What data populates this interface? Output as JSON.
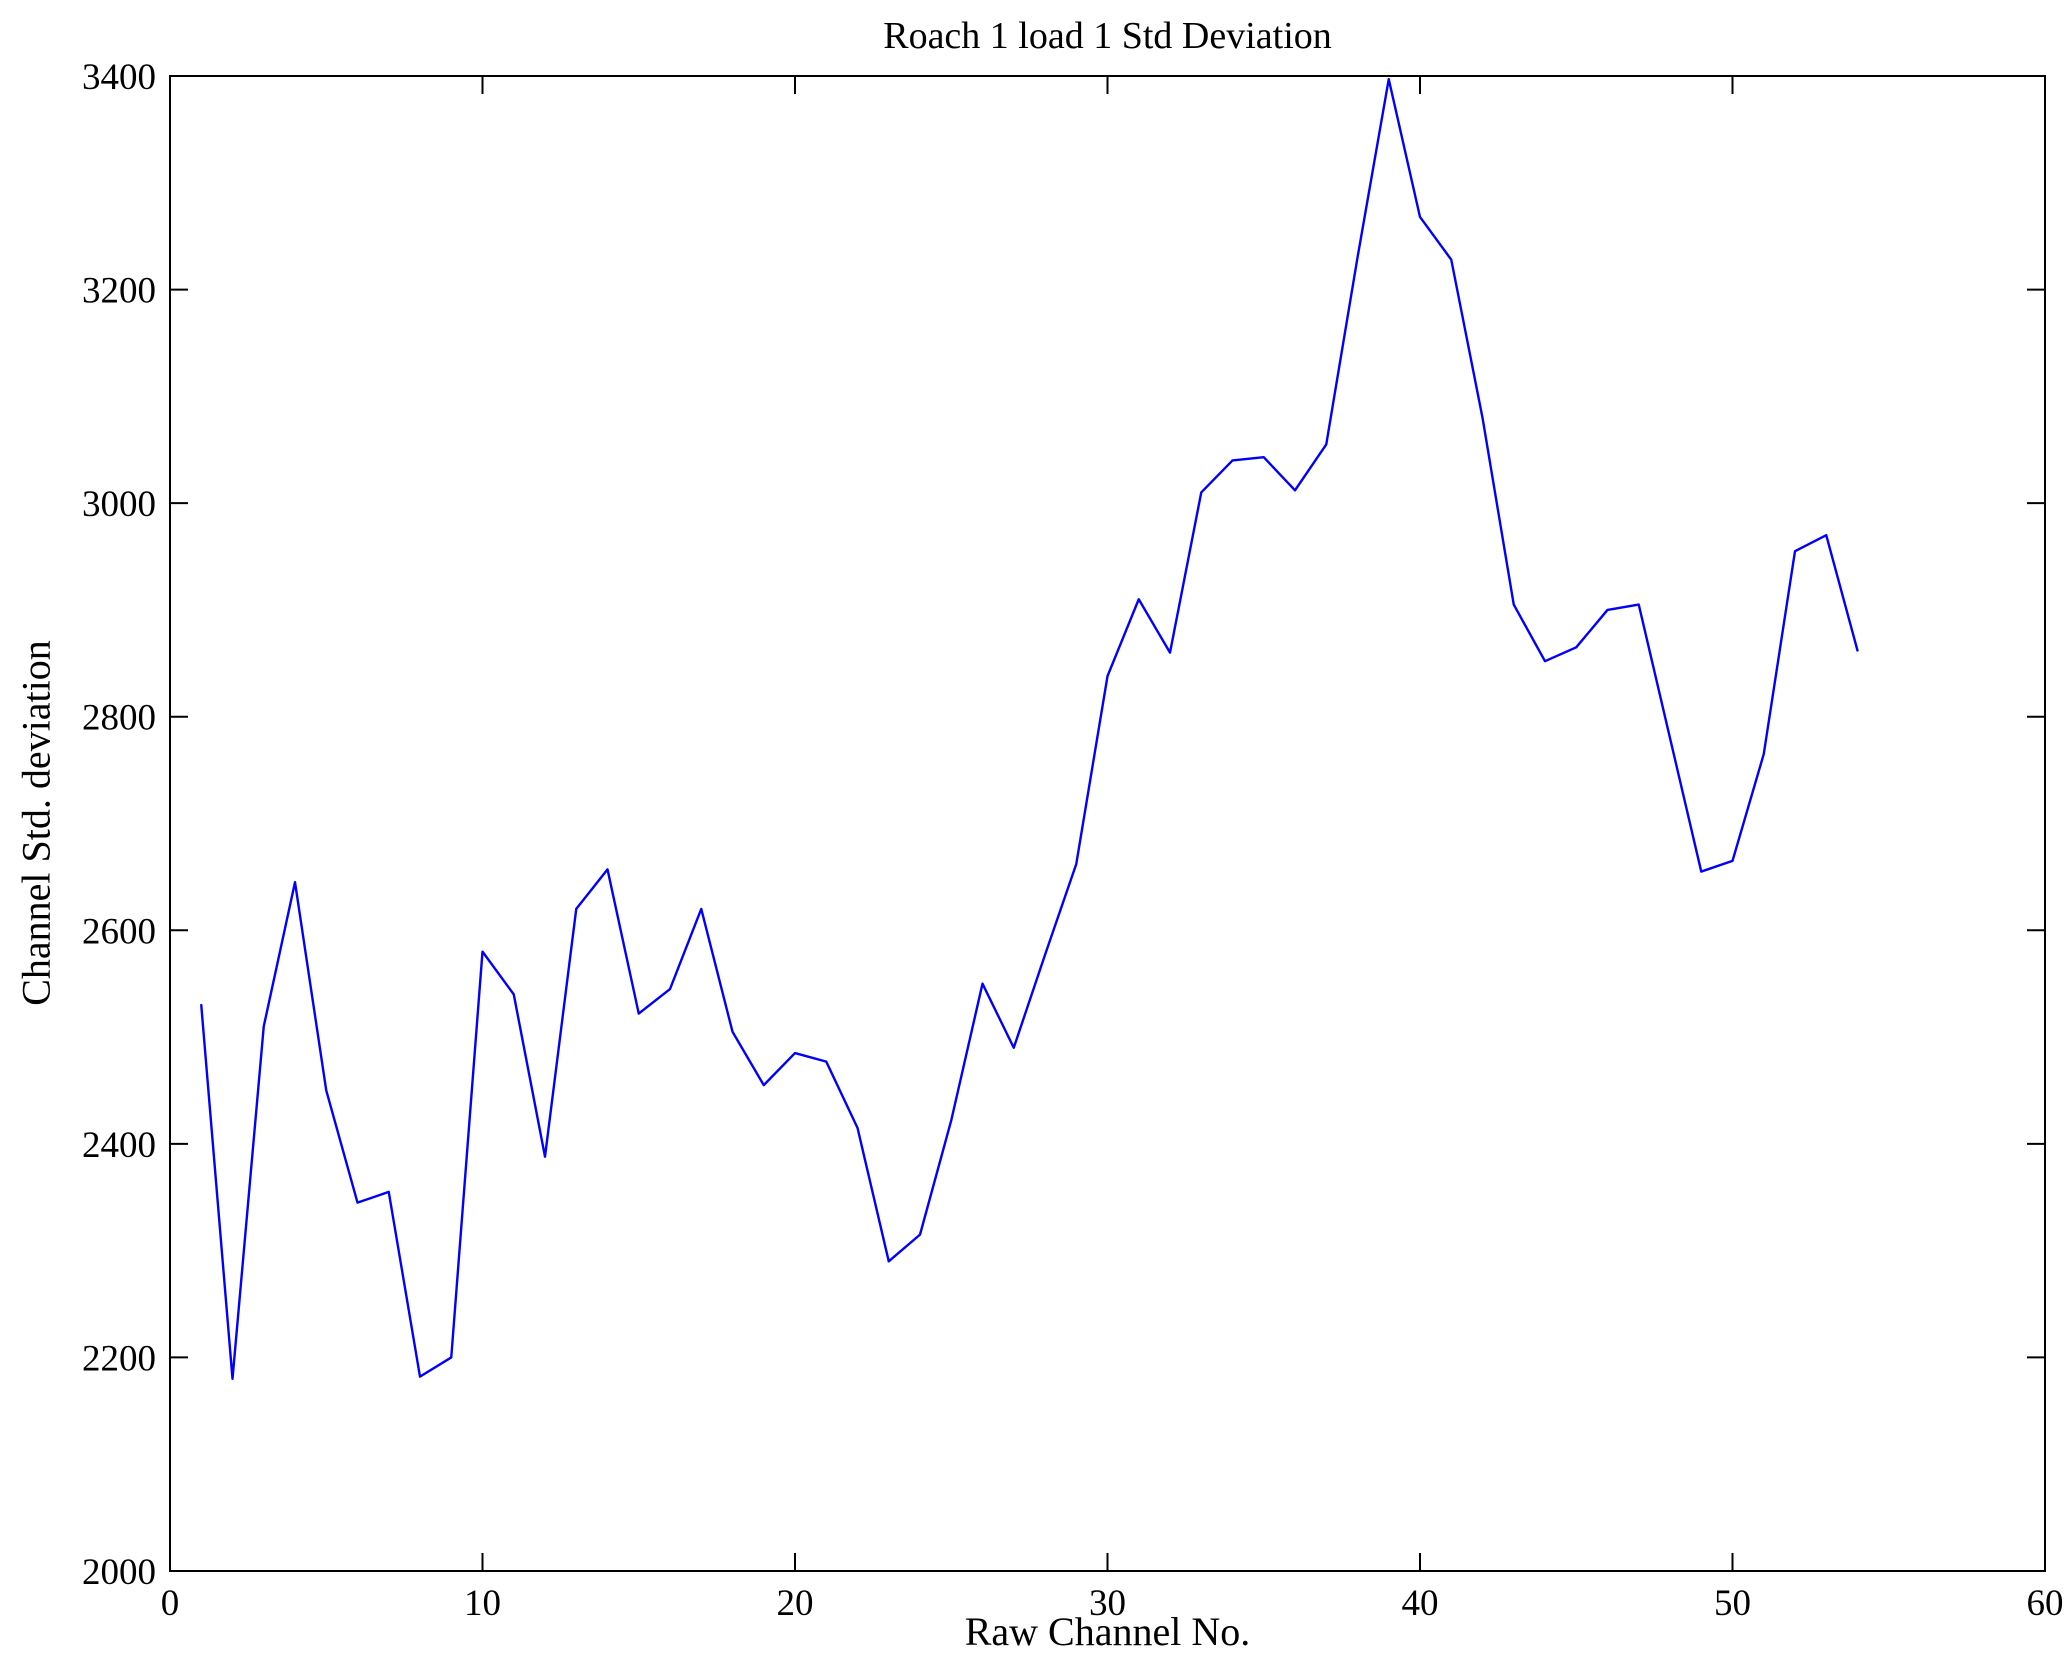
{
  "chart_data": {
    "type": "line",
    "title": "Roach 1 load 1 Std Deviation",
    "xlabel": "Raw Channel No.",
    "ylabel": "Channel Std. deviation",
    "xlim": [
      0,
      60
    ],
    "ylim": [
      2000,
      3400
    ],
    "xticks": [
      0,
      10,
      20,
      30,
      40,
      50,
      60
    ],
    "yticks": [
      2000,
      2200,
      2400,
      2600,
      2800,
      3000,
      3200,
      3400
    ],
    "grid": false,
    "legend_position": "none",
    "line_color": "#0000FF",
    "axis_color": "#000000",
    "x": [
      1,
      2,
      3,
      4,
      5,
      6,
      7,
      8,
      9,
      10,
      11,
      12,
      13,
      14,
      15,
      16,
      17,
      18,
      19,
      20,
      21,
      22,
      23,
      24,
      25,
      26,
      27,
      28,
      29,
      30,
      31,
      32,
      33,
      34,
      35,
      36,
      37,
      38,
      39,
      40,
      41,
      42,
      43,
      44,
      45,
      46,
      47,
      48,
      49,
      50,
      51,
      52,
      53,
      54
    ],
    "y": [
      2530,
      2180,
      2510,
      2645,
      2450,
      2345,
      2355,
      2182,
      2200,
      2580,
      2540,
      2388,
      2620,
      2657,
      2522,
      2545,
      2620,
      2505,
      2455,
      2485,
      2477,
      2415,
      2290,
      2315,
      2422,
      2550,
      2490,
      2577,
      2662,
      2838,
      2910,
      2860,
      3010,
      3040,
      3043,
      3012,
      3055,
      3230,
      3397,
      3268,
      3228,
      3080,
      2905,
      2852,
      2865,
      2900,
      2905,
      2780,
      2655,
      2665,
      2765,
      2955,
      2970,
      2862
    ]
  }
}
